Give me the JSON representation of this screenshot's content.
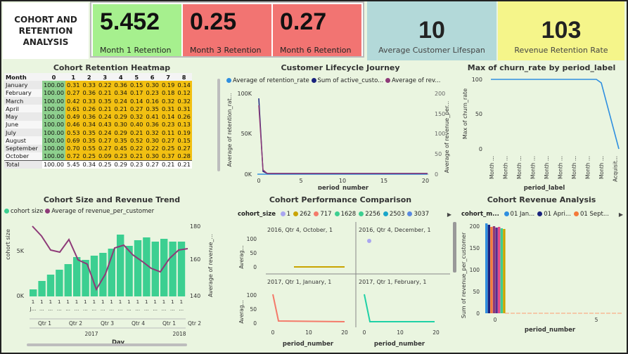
{
  "title_line1": "COHORT AND",
  "title_line2": "RETENTION",
  "title_line3": "ANALYSIS",
  "kpis": [
    {
      "value": "5.452",
      "label": "Month 1 Retention",
      "color": "#a6f08e"
    },
    {
      "value": "0.25",
      "label": "Month 3 Retention",
      "color": "#f27472"
    },
    {
      "value": "0.27",
      "label": "Month 6 Retention",
      "color": "#f27472"
    }
  ],
  "lifespan": {
    "value": "10",
    "label": "Average Customer Lifespan",
    "color": "#b3d9d9"
  },
  "revenue_retention": {
    "value": "103",
    "label": "Revenue Retention Rate",
    "color": "#f5f58a"
  },
  "heatmap": {
    "title": "Cohort Retention Heatmap",
    "corner": "Month",
    "columns": [
      "0",
      "1",
      "2",
      "3",
      "4",
      "5",
      "6",
      "7",
      "8"
    ],
    "rows": [
      {
        "month": "January",
        "values": [
          "100.00",
          "0.31",
          "0.33",
          "0.22",
          "0.36",
          "0.15",
          "0.30",
          "0.19",
          "0.14"
        ]
      },
      {
        "month": "February",
        "values": [
          "100.00",
          "0.27",
          "0.36",
          "0.21",
          "0.34",
          "0.17",
          "0.23",
          "0.18",
          "0.12"
        ]
      },
      {
        "month": "March",
        "values": [
          "100.00",
          "0.42",
          "0.33",
          "0.35",
          "0.24",
          "0.14",
          "0.16",
          "0.32",
          "0.32"
        ]
      },
      {
        "month": "April",
        "values": [
          "100.00",
          "0.61",
          "0.26",
          "0.21",
          "0.21",
          "0.27",
          "0.35",
          "0.31",
          "0.31"
        ]
      },
      {
        "month": "May",
        "values": [
          "100.00",
          "0.49",
          "0.36",
          "0.24",
          "0.29",
          "0.32",
          "0.41",
          "0.14",
          "0.26"
        ]
      },
      {
        "month": "June",
        "values": [
          "100.00",
          "0.46",
          "0.34",
          "0.43",
          "0.30",
          "0.40",
          "0.36",
          "0.23",
          "0.13"
        ]
      },
      {
        "month": "July",
        "values": [
          "100.00",
          "0.53",
          "0.35",
          "0.24",
          "0.29",
          "0.21",
          "0.32",
          "0.11",
          "0.19"
        ]
      },
      {
        "month": "August",
        "values": [
          "100.00",
          "0.69",
          "0.35",
          "0.27",
          "0.35",
          "0.52",
          "0.30",
          "0.27",
          "0.15"
        ]
      },
      {
        "month": "September",
        "values": [
          "100.00",
          "0.70",
          "0.55",
          "0.27",
          "0.45",
          "0.22",
          "0.22",
          "0.25",
          "0.27"
        ]
      },
      {
        "month": "October",
        "values": [
          "100.00",
          "0.72",
          "0.25",
          "0.09",
          "0.23",
          "0.21",
          "0.30",
          "0.37",
          "0.28"
        ]
      }
    ],
    "total": {
      "month": "Total",
      "values": [
        "100.00",
        "5.45",
        "0.34",
        "0.25",
        "0.29",
        "0.23",
        "0.27",
        "0.21",
        "0.21"
      ]
    }
  },
  "lifecycle": {
    "title": "Customer Lifecycle Journey",
    "legend": [
      {
        "label": "Average of retention_rate",
        "color": "#2f8fe0"
      },
      {
        "label": "Sum of active_custo...",
        "color": "#1a237e"
      },
      {
        "label": "Average of rev...",
        "color": "#8e3a78"
      }
    ],
    "y_left_label": "Average of retention_rat...",
    "y_right_label": "Average of revenue_per...",
    "y_left_ticks": [
      "100K",
      "50K",
      "0K"
    ],
    "y_right_ticks": [
      "200",
      "150",
      "100",
      "50",
      "0"
    ],
    "x_ticks": [
      "0",
      "5",
      "10",
      "15",
      "20"
    ],
    "x_label": "period_number"
  },
  "churn": {
    "title": "Max of churn_rate by period_label",
    "y_label": "Max of churn_rate",
    "y_ticks": [
      "100",
      "50",
      "0"
    ],
    "x_ticks": [
      "Month ...",
      "Month ...",
      "Month ...",
      "Month ...",
      "Month ...",
      "Month ...",
      "Month ...",
      "Month ...",
      "Month ...",
      "Acquisit..."
    ],
    "x_label": "period_label",
    "color": "#2f8fe0"
  },
  "size_trend": {
    "title": "Cohort Size and Revenue Trend",
    "legend": [
      {
        "label": "cohort size",
        "color": "#3ccf91"
      },
      {
        "label": "Average of revenue_per_customer",
        "color": "#8e3a78"
      }
    ],
    "y_left_label": "cohort size",
    "y_right_label": "Average of revenue_...",
    "y_left_ticks": [
      "5K",
      "0K"
    ],
    "y_right_ticks": [
      "180",
      "160",
      "140"
    ],
    "day_ticks": [
      "1",
      "1",
      "1",
      "1",
      "1",
      "1",
      "1",
      "1",
      "1",
      "1",
      "1",
      "1",
      "1",
      "1",
      "1",
      "1",
      "1",
      "1"
    ],
    "day_sub": [
      "J...",
      "...",
      "...",
      "...",
      "...",
      "...",
      "...",
      "...",
      "...",
      "...",
      "...",
      "...",
      "...",
      "...",
      "...",
      "...",
      "...",
      "..."
    ],
    "quarters": [
      "Qtr 1",
      "Qtr 2",
      "Qtr 3",
      "Qtr 4",
      "Qtr 1",
      "Qtr 2"
    ],
    "years": [
      "2017",
      "2018"
    ],
    "x_label": "Day"
  },
  "performance": {
    "title": "Cohort Performance Comparison",
    "legend_title": "cohort_size",
    "legend": [
      {
        "label": "1",
        "color": "#a9a6f0"
      },
      {
        "label": "262",
        "color": "#c9a400"
      },
      {
        "label": "717",
        "color": "#f47a6a"
      },
      {
        "label": "1628",
        "color": "#3ccf91"
      },
      {
        "label": "2256",
        "color": "#3ccf91"
      },
      {
        "label": "2503",
        "color": "#1aa6c9"
      },
      {
        "label": "3037",
        "color": "#5a8ae0"
      }
    ],
    "panels": [
      {
        "label": "2016, Qtr 4, October, 1"
      },
      {
        "label": "2016, Qtr 4, December, 1"
      },
      {
        "label": "2017, Qtr 1, January, 1"
      },
      {
        "label": "2017, Qtr 1, February, 1"
      }
    ],
    "y_label": "Averag...",
    "y_ticks": [
      "100",
      "50",
      "0"
    ],
    "x_ticks": [
      "0",
      "10",
      "20"
    ],
    "x_label": "period_number"
  },
  "revenue": {
    "title": "Cohort Revenue Analysis",
    "legend_title": "cohort_m...",
    "legend": [
      {
        "label": "01 Jan...",
        "color": "#2f8fe0"
      },
      {
        "label": "01 Apri...",
        "color": "#1a237e"
      },
      {
        "label": "01 Sept...",
        "color": "#f47a3a"
      }
    ],
    "y_label": "Sum of revenue_per_customer",
    "y_ticks": [
      "200",
      "150",
      "100",
      "50",
      "0"
    ],
    "x_ticks": [
      "0",
      "5"
    ],
    "x_label": "period_number"
  }
}
